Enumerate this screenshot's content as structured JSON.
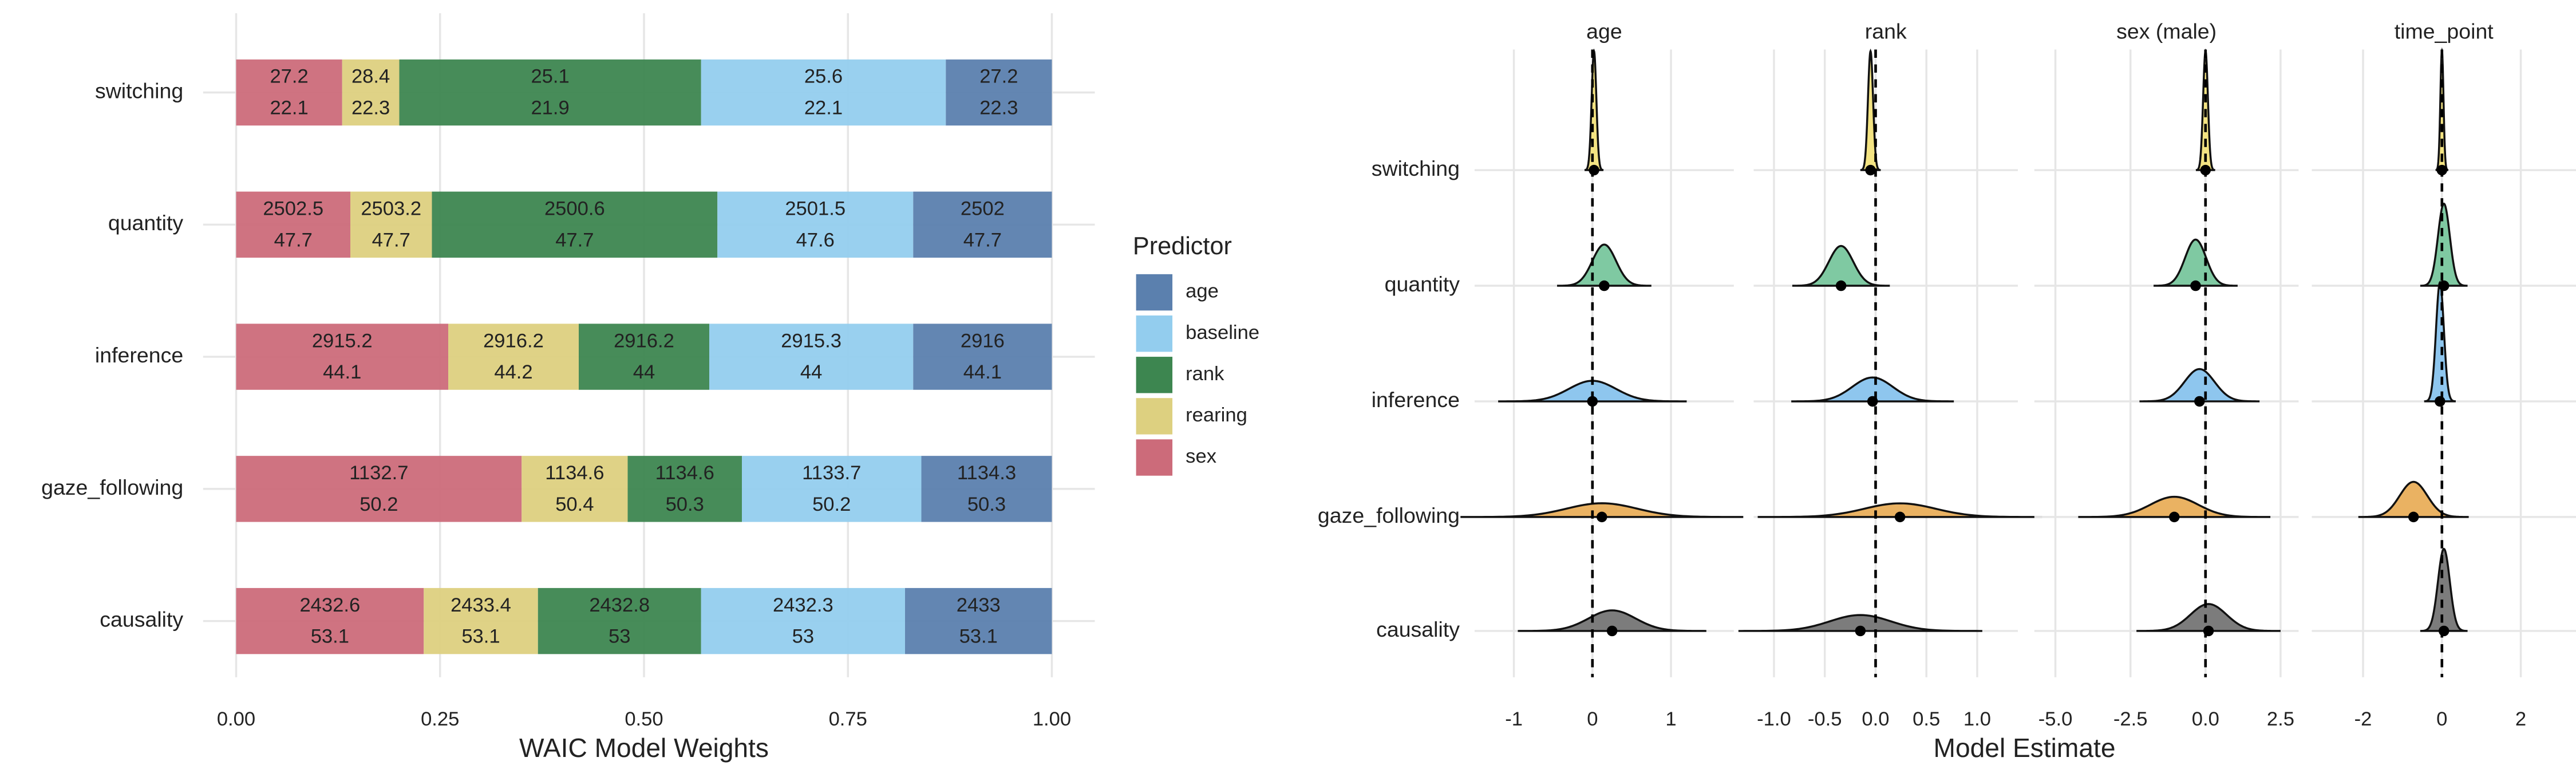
{
  "chart_data": [
    {
      "type": "bar",
      "categories": [
        "switching",
        "quantity",
        "inference",
        "gaze_following",
        "causality"
      ],
      "series": [
        {
          "name": "sex",
          "color": "#cc6b7a",
          "values": [
            0.13,
            0.14,
            0.26,
            0.35,
            0.23
          ],
          "waic": [
            27.2,
            2502.5,
            2915.2,
            1132.7,
            2432.6
          ],
          "se": [
            22.1,
            47.7,
            44.1,
            50.2,
            53.1
          ]
        },
        {
          "name": "rearing",
          "color": "#ddd080",
          "values": [
            0.07,
            0.1,
            0.16,
            0.13,
            0.14
          ],
          "waic": [
            28.4,
            2503.2,
            2916.2,
            1134.6,
            2433.4
          ],
          "se": [
            22.3,
            47.7,
            44.2,
            50.4,
            53.1
          ]
        },
        {
          "name": "rank",
          "color": "#3d8650",
          "values": [
            0.37,
            0.35,
            0.16,
            0.14,
            0.2
          ],
          "waic": [
            25.1,
            2500.6,
            2916.2,
            1134.6,
            2432.8
          ],
          "se": [
            21.9,
            47.7,
            44,
            50.3,
            53
          ]
        },
        {
          "name": "baseline",
          "color": "#93cdee",
          "values": [
            0.3,
            0.24,
            0.25,
            0.22,
            0.25
          ],
          "waic": [
            25.6,
            2501.5,
            2915.3,
            1133.7,
            2432.3
          ],
          "se": [
            22.1,
            47.6,
            44,
            50.2,
            53
          ]
        },
        {
          "name": "age",
          "color": "#5b80ae",
          "values": [
            0.13,
            0.17,
            0.17,
            0.16,
            0.18
          ],
          "waic": [
            27.2,
            2502,
            2916,
            1134.3,
            2433
          ],
          "se": [
            22.3,
            47.7,
            44.1,
            50.3,
            53.1
          ]
        }
      ],
      "xlim": [
        0,
        1
      ],
      "xticks": [
        {
          "value": 0,
          "label": "0.00"
        },
        {
          "value": 0.25,
          "label": "0.25"
        },
        {
          "value": 0.5,
          "label": "0.50"
        },
        {
          "value": 0.75,
          "label": "0.75"
        },
        {
          "value": 1,
          "label": "1.00"
        }
      ],
      "x_label": "WAIC Model Weights",
      "legend_title": "Predictor",
      "grid": true
    },
    {
      "type": "ridgeline",
      "categories": [
        "switching",
        "quantity",
        "inference",
        "gaze_following",
        "causality"
      ],
      "colors": [
        "#f3e382",
        "#7fc9a2",
        "#8ec6ee",
        "#eab262",
        "#7c7c7c"
      ],
      "x_label": "Model Estimate",
      "reference_line": 0,
      "facets": [
        {
          "title": "age",
          "xlim": [
            -1.5,
            1.8
          ],
          "xticks": [
            -1,
            0,
            1
          ],
          "estimates": [
            0.02,
            0.15,
            0,
            0.12,
            0.25
          ],
          "spread": [
            0.03,
            0.15,
            0.3,
            0.45,
            0.3
          ]
        },
        {
          "title": "rank",
          "xlim": [
            -1.2,
            1.4
          ],
          "xticks": [
            {
              "value": -1,
              "label": "-1.0"
            },
            {
              "value": -0.5,
              "label": "-0.5"
            },
            {
              "value": 0,
              "label": "0.0"
            },
            {
              "value": 0.5,
              "label": "0.5"
            },
            {
              "value": 1,
              "label": "1.0"
            }
          ],
          "estimates": [
            -0.05,
            -0.34,
            -0.03,
            0.24,
            -0.15
          ],
          "spread": [
            0.025,
            0.12,
            0.2,
            0.35,
            0.3
          ]
        },
        {
          "title": "sex (male)",
          "xlim": [
            -5.7,
            3.1
          ],
          "xticks": [
            {
              "value": -5,
              "label": "-5.0"
            },
            {
              "value": -2.5,
              "label": "-2.5"
            },
            {
              "value": 0,
              "label": "0.0"
            },
            2.5
          ],
          "estimates": [
            0,
            -0.33,
            -0.2,
            -1.04,
            0.1
          ],
          "spread": [
            0.08,
            0.35,
            0.5,
            0.8,
            0.6
          ]
        },
        {
          "title": "time_point",
          "xlim": [
            -3.3,
            3.4
          ],
          "xticks": [
            -2,
            0,
            2
          ],
          "estimates": [
            0,
            0.05,
            -0.05,
            -0.72,
            0.05
          ],
          "spread": [
            0.04,
            0.15,
            0.1,
            0.35,
            0.15
          ]
        }
      ]
    }
  ]
}
